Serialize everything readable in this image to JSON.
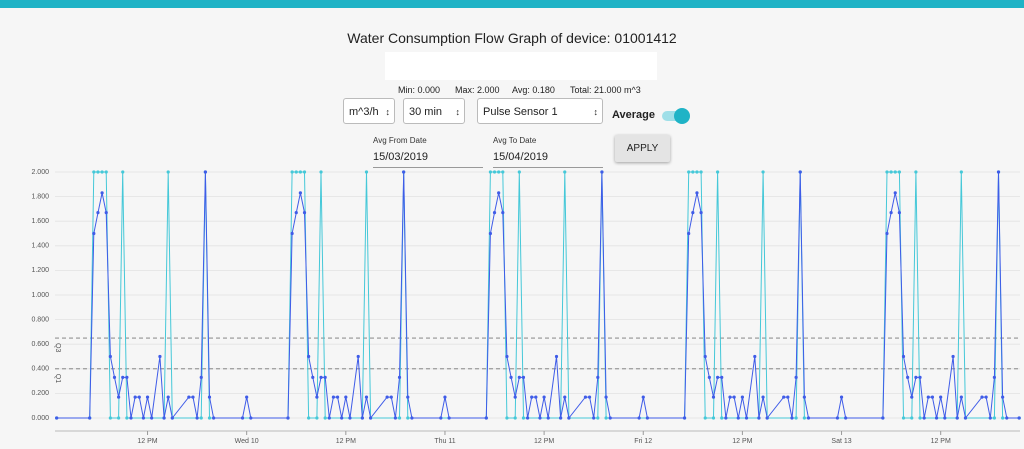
{
  "page": {
    "title": "Water Consumption Flow Graph of device: 01001412",
    "stats": [
      "Min: 0.000",
      "Max: 2.000",
      "Avg: 0.180",
      "Total: 21.000 m^3"
    ],
    "selects": [
      "m^3/h",
      "30 min",
      "Pulse Sensor 1"
    ],
    "toggle_label": "Average",
    "from_label": "Avg From Date",
    "from_value": "15/03/2019",
    "to_label": "Avg To Date",
    "to_value": "15/04/2019",
    "button": "APPLY"
  },
  "chart_data": {
    "type": "line",
    "xlim": [
      0.8,
      117.6
    ],
    "ylim": [
      0,
      2
    ],
    "yticks": [
      {
        "value": 0,
        "label": "0.000"
      },
      {
        "value": 0.2,
        "label": "0.200"
      },
      {
        "value": 0.4,
        "label": "0.400"
      },
      {
        "value": 0.6,
        "label": "0.600"
      },
      {
        "value": 0.8,
        "label": "0.800"
      },
      {
        "value": 1,
        "label": "1.000"
      },
      {
        "value": 1.2,
        "label": "1.200"
      },
      {
        "value": 1.4,
        "label": "1.400"
      },
      {
        "value": 1.6,
        "label": "1.600"
      },
      {
        "value": 1.8,
        "label": "1.800"
      },
      {
        "value": 2,
        "label": "2.000"
      }
    ],
    "xticks": [
      {
        "value": 12,
        "label": "12 PM"
      },
      {
        "value": 24,
        "label": "Wed 10"
      },
      {
        "value": 36,
        "label": "12 PM"
      },
      {
        "value": 48,
        "label": "Thu 11"
      },
      {
        "value": 60,
        "label": "12 PM"
      },
      {
        "value": 72,
        "label": "Fri 12"
      },
      {
        "value": 84,
        "label": "12 PM"
      },
      {
        "value": 96,
        "label": "Sat 13"
      },
      {
        "value": 108,
        "label": "12 PM"
      }
    ],
    "grid": true,
    "reference_lines": [
      {
        "label": "Q3",
        "value": 0.65
      },
      {
        "label": "Q1",
        "value": 0.4
      }
    ],
    "series": [
      {
        "color": "#45c8d8",
        "x": [
          1,
          5,
          5.5,
          6,
          6.5,
          7,
          7.5,
          8.5,
          9,
          9.5,
          14,
          14.5,
          15,
          18.5,
          19,
          19.5,
          29,
          29.5,
          30,
          30.5,
          31,
          31.5,
          32.5,
          33,
          33.5,
          38,
          38.5,
          39,
          42.5,
          43,
          43.5,
          53,
          53.5,
          54,
          54.5,
          55,
          55.5,
          56.5,
          57,
          57.5,
          62,
          62.5,
          63,
          66.5,
          67,
          67.5,
          77,
          77.5,
          78,
          78.5,
          79,
          79.5,
          80.5,
          81,
          81.5,
          86,
          86.5,
          87,
          90.5,
          91,
          91.5,
          101,
          101.5,
          102,
          102.5,
          103,
          103.5,
          104.5,
          105,
          105.5,
          110,
          110.5,
          111,
          114.5,
          115,
          115.5,
          117.5
        ],
        "values": [
          0,
          0,
          2,
          2,
          2,
          2,
          0,
          0,
          2,
          0,
          0,
          2,
          0,
          0,
          2,
          0,
          0,
          2,
          2,
          2,
          2,
          0,
          0,
          2,
          0,
          0,
          2,
          0,
          0,
          2,
          0,
          0,
          2,
          2,
          2,
          2,
          0,
          0,
          2,
          0,
          0,
          2,
          0,
          0,
          2,
          0,
          0,
          2,
          2,
          2,
          2,
          0,
          0,
          2,
          0,
          0,
          2,
          0,
          0,
          2,
          0,
          0,
          2,
          2,
          2,
          2,
          0,
          0,
          2,
          0,
          0,
          2,
          0,
          0,
          2,
          0,
          0
        ]
      },
      {
        "color": "#3f5ce8",
        "x": [
          1,
          5,
          5.5,
          6,
          6.5,
          7,
          7.5,
          8,
          8.5,
          9,
          9.5,
          10,
          10.5,
          11,
          11.5,
          12,
          12.5,
          13.5,
          14,
          14.5,
          15,
          17,
          17.5,
          18,
          18.5,
          19,
          19.5,
          20,
          23.5,
          24,
          24.5,
          29,
          29.5,
          30,
          30.5,
          31,
          31.5,
          32,
          32.5,
          33,
          33.5,
          34,
          34.5,
          35,
          35.5,
          36,
          36.5,
          37.5,
          38,
          38.5,
          39,
          41,
          41.5,
          42,
          42.5,
          43,
          43.5,
          44,
          47.5,
          48,
          48.5,
          53,
          53.5,
          54,
          54.5,
          55,
          55.5,
          56,
          56.5,
          57,
          57.5,
          58,
          58.5,
          59,
          59.5,
          60,
          60.5,
          61.5,
          62,
          62.5,
          63,
          65,
          65.5,
          66,
          66.5,
          67,
          67.5,
          68,
          71.5,
          72,
          72.5,
          77,
          77.5,
          78,
          78.5,
          79,
          79.5,
          80,
          80.5,
          81,
          81.5,
          82,
          82.5,
          83,
          83.5,
          84,
          84.5,
          85.5,
          86,
          86.5,
          87,
          89,
          89.5,
          90,
          90.5,
          91,
          91.5,
          92,
          95.5,
          96,
          96.5,
          101,
          101.5,
          102,
          102.5,
          103,
          103.5,
          104,
          104.5,
          105,
          105.5,
          106,
          106.5,
          107,
          107.5,
          108,
          108.5,
          109.5,
          110,
          110.5,
          111,
          113,
          113.5,
          114,
          114.5,
          115,
          115.5,
          116,
          117.5
        ],
        "values": [
          0,
          0,
          1.5,
          1.67,
          1.83,
          1.67,
          0.5,
          0.33,
          0.17,
          0.33,
          0.33,
          0,
          0.17,
          0.17,
          0,
          0.17,
          0,
          0.5,
          0,
          0.17,
          0,
          0.17,
          0.17,
          0,
          0.33,
          2,
          0.17,
          0,
          0,
          0.17,
          0,
          0,
          1.5,
          1.67,
          1.83,
          1.67,
          0.5,
          0.33,
          0.17,
          0.33,
          0.33,
          0,
          0.17,
          0.17,
          0,
          0.17,
          0,
          0.5,
          0,
          0.17,
          0,
          0.17,
          0.17,
          0,
          0.33,
          2,
          0.17,
          0,
          0,
          0.17,
          0,
          0,
          1.5,
          1.67,
          1.83,
          1.67,
          0.5,
          0.33,
          0.17,
          0.33,
          0.33,
          0,
          0.17,
          0.17,
          0,
          0.17,
          0,
          0.5,
          0,
          0.17,
          0,
          0.17,
          0.17,
          0,
          0.33,
          2,
          0.17,
          0,
          0,
          0.17,
          0,
          0,
          1.5,
          1.67,
          1.83,
          1.67,
          0.5,
          0.33,
          0.17,
          0.33,
          0.33,
          0,
          0.17,
          0.17,
          0,
          0.17,
          0,
          0.5,
          0,
          0.17,
          0,
          0.17,
          0.17,
          0,
          0.33,
          2,
          0.17,
          0,
          0,
          0.17,
          0,
          0,
          1.5,
          1.67,
          1.83,
          1.67,
          0.5,
          0.33,
          0.17,
          0.33,
          0.33,
          0,
          0.17,
          0.17,
          0,
          0.17,
          0,
          0.5,
          0,
          0.17,
          0,
          0.17,
          0.17,
          0,
          0.33,
          2,
          0.17,
          0,
          0
        ]
      }
    ]
  }
}
